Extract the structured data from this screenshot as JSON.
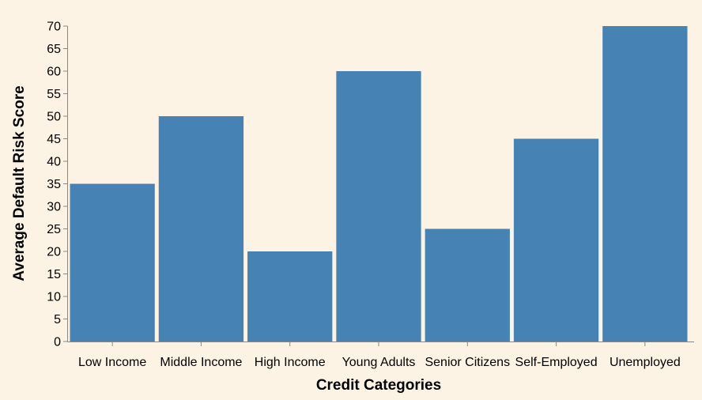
{
  "chart_data": {
    "type": "bar",
    "title": "",
    "xlabel": "Credit Categories",
    "ylabel": "Average Default Risk Score",
    "categories": [
      "Low Income",
      "Middle Income",
      "High Income",
      "Young Adults",
      "Senior Citizens",
      "Self-Employed",
      "Unemployed"
    ],
    "values": [
      35,
      50,
      20,
      60,
      25,
      45,
      70
    ],
    "ylim": [
      0,
      70
    ],
    "yticks": [
      0,
      5,
      10,
      15,
      20,
      25,
      30,
      35,
      40,
      45,
      50,
      55,
      60,
      65,
      70
    ],
    "grid": false,
    "colors": {
      "bar": "#4682b4",
      "background": "#fdf3e4"
    }
  }
}
